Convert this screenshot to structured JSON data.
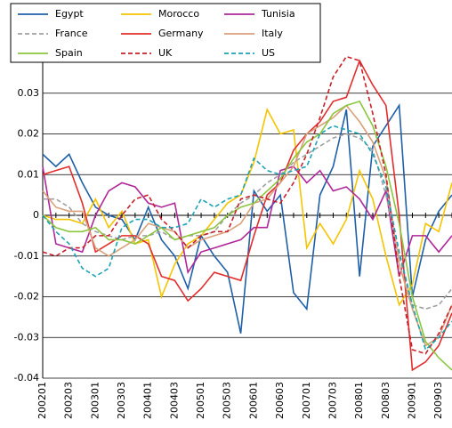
{
  "chart_data": {
    "type": "line",
    "categories": [
      "200201",
      null,
      "200203",
      null,
      "200301",
      null,
      "200303",
      null,
      "200401",
      null,
      "200403",
      null,
      "200501",
      null,
      "200503",
      null,
      "200601",
      null,
      "200603",
      null,
      "200701",
      null,
      "200703",
      null,
      "200801",
      null,
      "200803",
      null,
      "200901",
      null,
      "200903",
      null
    ],
    "ylim": [
      -0.04,
      0.04
    ],
    "yticks": [
      -0.04,
      -0.03,
      -0.02,
      -0.01,
      0,
      0.01,
      0.02,
      0.03
    ],
    "grid": true,
    "legend": "top-left",
    "series": [
      {
        "name": "Egypt",
        "color": "#1f5fa8",
        "dashed": false,
        "values": [
          0.015,
          0.012,
          0.015,
          0.008,
          0.002,
          0.0,
          -0.001,
          -0.006,
          0.002,
          -0.006,
          -0.01,
          -0.018,
          -0.005,
          -0.01,
          -0.014,
          -0.029,
          0.006,
          0.001,
          0.005,
          -0.019,
          -0.023,
          0.005,
          0.012,
          0.026,
          -0.015,
          0.017,
          0.022,
          0.027,
          -0.02,
          -0.006,
          0.001,
          0.005
        ]
      },
      {
        "name": "Morocco",
        "color": "#f5c400",
        "dashed": false,
        "values": [
          0.0,
          -0.001,
          -0.001,
          -0.002,
          0.004,
          -0.003,
          0.001,
          -0.007,
          -0.006,
          -0.02,
          -0.012,
          -0.007,
          -0.005,
          -0.001,
          0.003,
          0.005,
          0.013,
          0.026,
          0.02,
          0.021,
          -0.008,
          -0.002,
          -0.007,
          -0.001,
          0.011,
          0.004,
          -0.01,
          -0.022,
          -0.017,
          -0.002,
          -0.004,
          0.008
        ]
      },
      {
        "name": "Tunisia",
        "color": "#b0279a",
        "dashed": false,
        "values": [
          0.012,
          -0.007,
          -0.008,
          -0.009,
          0.0,
          0.006,
          0.008,
          0.007,
          0.003,
          0.002,
          0.003,
          -0.014,
          -0.009,
          -0.008,
          -0.007,
          -0.006,
          -0.003,
          -0.003,
          0.011,
          0.012,
          0.008,
          0.011,
          0.006,
          0.007,
          0.004,
          -0.001,
          0.006,
          -0.015,
          -0.005,
          -0.005,
          -0.009,
          -0.005
        ]
      },
      {
        "name": "France",
        "color": "#a0a0a0",
        "dashed": true,
        "values": [
          0.004,
          0.004,
          0.002,
          -0.002,
          -0.004,
          -0.005,
          -0.006,
          -0.005,
          -0.005,
          -0.004,
          -0.006,
          -0.005,
          -0.005,
          -0.004,
          0.0,
          0.003,
          0.005,
          0.008,
          0.01,
          0.013,
          0.015,
          0.017,
          0.019,
          0.02,
          0.019,
          0.016,
          0.005,
          -0.01,
          -0.022,
          -0.023,
          -0.022,
          -0.018
        ]
      },
      {
        "name": "Germany",
        "color": "#e32d2d",
        "dashed": false,
        "values": [
          0.01,
          0.011,
          0.012,
          0.003,
          -0.009,
          -0.007,
          -0.005,
          -0.005,
          -0.007,
          -0.015,
          -0.016,
          -0.021,
          -0.018,
          -0.014,
          -0.015,
          -0.016,
          -0.005,
          0.005,
          0.008,
          0.016,
          0.02,
          0.023,
          0.028,
          0.029,
          0.038,
          0.032,
          0.027,
          0.0,
          -0.038,
          -0.036,
          -0.032,
          -0.024
        ]
      },
      {
        "name": "Italy",
        "color": "#d9a07a",
        "dashed": false,
        "values": [
          0.006,
          0.002,
          0.001,
          0.001,
          -0.008,
          -0.01,
          -0.008,
          -0.006,
          -0.002,
          -0.003,
          -0.004,
          -0.008,
          -0.006,
          -0.005,
          -0.004,
          -0.002,
          0.003,
          0.004,
          0.008,
          0.012,
          0.02,
          0.022,
          0.024,
          0.027,
          0.023,
          0.018,
          0.009,
          -0.012,
          -0.023,
          -0.032,
          -0.03,
          -0.022
        ]
      },
      {
        "name": "Spain",
        "color": "#8cc63e",
        "dashed": false,
        "values": [
          0.0,
          -0.003,
          -0.004,
          -0.004,
          -0.003,
          -0.006,
          -0.006,
          -0.007,
          -0.005,
          -0.003,
          -0.006,
          -0.005,
          -0.004,
          -0.003,
          0.0,
          0.002,
          0.003,
          0.006,
          0.009,
          0.014,
          0.018,
          0.02,
          0.025,
          0.027,
          0.028,
          0.022,
          0.012,
          -0.002,
          -0.02,
          -0.031,
          -0.035,
          -0.038
        ]
      },
      {
        "name": "UK",
        "color": "#c8202a",
        "dashed": true,
        "values": [
          -0.009,
          -0.01,
          -0.008,
          -0.008,
          -0.005,
          -0.005,
          0.0,
          0.004,
          0.005,
          -0.001,
          -0.004,
          -0.008,
          -0.005,
          -0.004,
          -0.004,
          0.004,
          0.005,
          0.004,
          0.003,
          0.008,
          0.015,
          0.024,
          0.034,
          0.039,
          0.038,
          0.025,
          0.01,
          -0.015,
          -0.033,
          -0.034,
          -0.029,
          -0.022
        ]
      },
      {
        "name": "US",
        "color": "#1ba3b5",
        "dashed": true,
        "values": [
          0.0,
          -0.004,
          -0.007,
          -0.013,
          -0.015,
          -0.013,
          -0.003,
          -0.001,
          -0.001,
          -0.003,
          -0.003,
          -0.002,
          0.004,
          0.002,
          0.004,
          0.005,
          0.014,
          0.011,
          0.01,
          0.011,
          0.012,
          0.02,
          0.022,
          0.021,
          0.02,
          0.015,
          0.007,
          -0.009,
          -0.022,
          -0.033,
          -0.03,
          -0.026
        ]
      }
    ]
  }
}
